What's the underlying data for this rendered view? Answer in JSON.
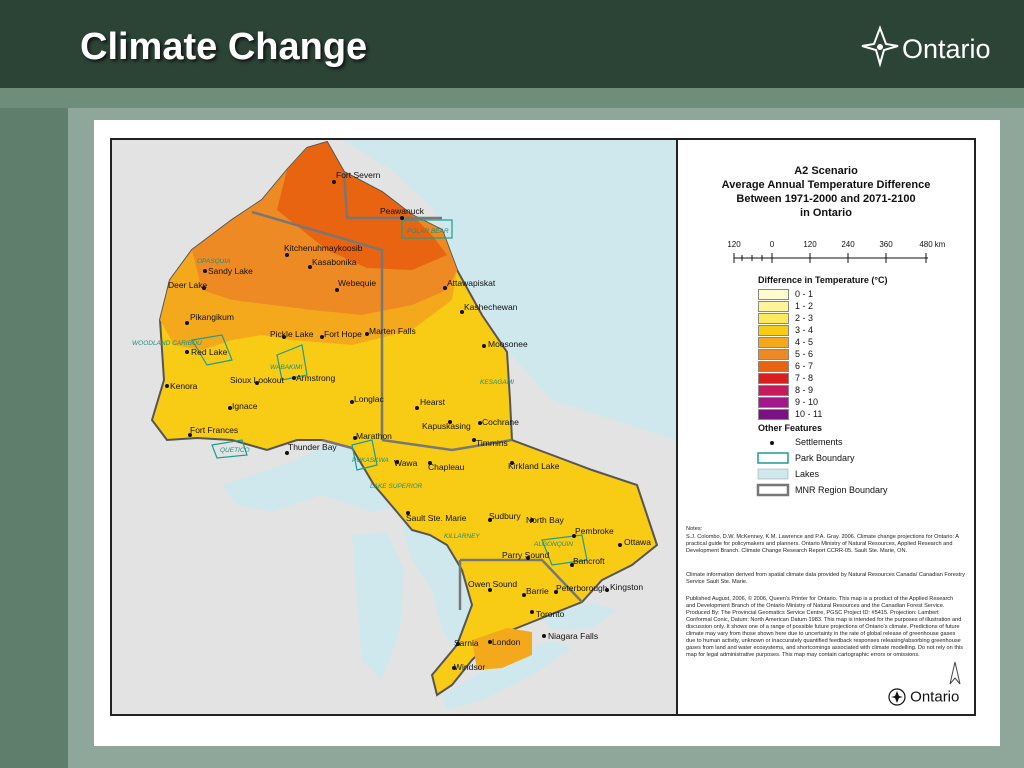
{
  "slide": {
    "title": "Climate Change",
    "logo_text": "Ontario"
  },
  "map": {
    "title_lines": [
      "A2 Scenario",
      "Average Annual Temperature Difference",
      "Between 1971-2000 and 2071-2100",
      "in Ontario"
    ],
    "scale_bar": {
      "ticks": [
        "120",
        "0",
        "120",
        "240",
        "360",
        "480"
      ],
      "unit": "km"
    },
    "legend_heading": "Difference in Temperature (°C)",
    "legend": [
      {
        "label": "0 - 1",
        "color": "#fffbd0"
      },
      {
        "label": "1 - 2",
        "color": "#fdf39a"
      },
      {
        "label": "2 - 3",
        "color": "#fde95a"
      },
      {
        "label": "3 - 4",
        "color": "#f8cc14"
      },
      {
        "label": "4 - 5",
        "color": "#f4a91c"
      },
      {
        "label": "5 - 6",
        "color": "#ee8a23"
      },
      {
        "label": "6 - 7",
        "color": "#e86410"
      },
      {
        "label": "7 - 8",
        "color": "#d81e1e"
      },
      {
        "label": "8 - 9",
        "color": "#c41c5a"
      },
      {
        "label": "9 - 10",
        "color": "#a0188a"
      },
      {
        "label": "10 - 11",
        "color": "#7a1282"
      }
    ],
    "other_features_heading": "Other Features",
    "other_features": [
      {
        "label": "Settlements",
        "symbol": "dot"
      },
      {
        "label": "Park Boundary",
        "symbol": "park-box"
      },
      {
        "label": "Lakes",
        "symbol": "lake-box"
      },
      {
        "label": "MNR Region Boundary",
        "symbol": "region-box"
      }
    ],
    "notes": [
      "Notes:",
      "S.J. Colombo, D.W. McKenney, K.M. Lawrence and P.A. Gray. 2006. Climate change projections for Ontario: A practical guide for policymakers and planners. Ontario Ministry of Natural Resources, Applied Research and Development Branch. Climate Change Research Report CCRR-05. Sault Ste. Marie, ON.",
      "Climate information derived from spatial climate data provided by Natural Resources Canada/ Canadian Forestry Service Sault Ste. Marie.",
      "Published August, 2006, © 2006, Queen's Printer for Ontario. This map is a product of the Applied Research and Development Branch of the Ontario Ministry of Natural Resources and the Canadian Forest Service. Produced By: The Provincial Geomatics Service Centre, PGSC Project ID: #5415. Projection: Lambert Conformal Conic, Datum: North American Datum 1983. This map is intended for the purposes of illustration and discussion only. It shows one of a range of possible future projections of Ontario's climate. Predictions of future climate may vary from those shown here due to uncertainty in the rate of global release of greenhouse gases due to human activity, unknown or inaccurately quantified feedback responses releasing/absorbing greenhouse gases from land and water ecosystems, and shortcomings associated with climate modelling. Do not rely on this map for legal administrative purposes. This map may contain cartographic errors or omissions."
    ],
    "map_logo_text": "Ontario",
    "cities": [
      "Fort Severn",
      "Peawanuck",
      "Kitchenuhmaykoosib",
      "Kasabonika",
      "Sandy Lake",
      "Deer Lake",
      "Webequie",
      "Attawapiskat",
      "Kashechewan",
      "Pikangikum",
      "Pickle Lake",
      "Fort Hope",
      "Marten Falls",
      "Moosonee",
      "Red Lake",
      "Sioux Lookout",
      "Armstrong",
      "Kenora",
      "Ignace",
      "Longlac",
      "Hearst",
      "Cochrane",
      "Kapuskasing",
      "Timmins",
      "Fort Frances",
      "Thunder Bay",
      "Marathon",
      "Wawa",
      "Chapleau",
      "Kirkland Lake",
      "Sault Ste. Marie",
      "Sudbury",
      "North Bay",
      "Pembroke",
      "Ottawa",
      "Parry Sound",
      "Bancroft",
      "Owen Sound",
      "Barrie",
      "Peterborough",
      "Kingston",
      "Toronto",
      "Niagara Falls",
      "Sarnia",
      "London",
      "Windsor"
    ],
    "parks": [
      "POLAR BEAR",
      "OPASQUIA",
      "WOODLAND CARIBOU",
      "WABAKIMI",
      "KESAGAMI",
      "QUETICO",
      "PUKASKWA",
      "LAKE SUPERIOR",
      "KILLARNEY",
      "ALGONQUIN"
    ]
  }
}
